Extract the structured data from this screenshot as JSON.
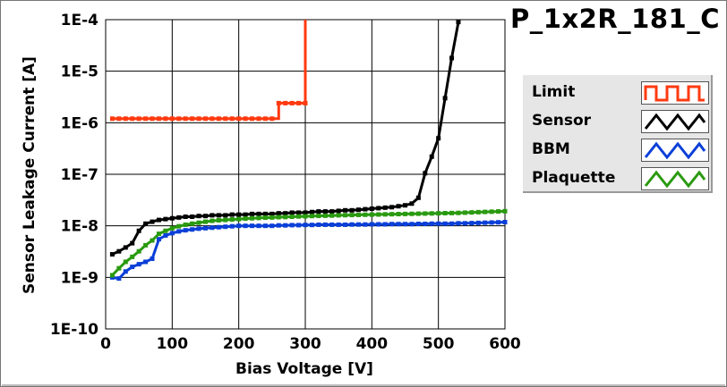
{
  "title": "P_1x2R_181_C",
  "legend": [
    {
      "label": "Limit",
      "color": "#ff3a10",
      "icon": "square-wave-icon"
    },
    {
      "label": "Sensor",
      "color": "#000000",
      "icon": "triangle-wave-icon"
    },
    {
      "label": "BBM",
      "color": "#0a3fd8",
      "icon": "triangle-wave-icon"
    },
    {
      "label": "Plaquette",
      "color": "#2a9a10",
      "icon": "triangle-wave-icon"
    }
  ],
  "chart_data": {
    "type": "line",
    "title": "P_1x2R_181_C",
    "xlabel": "Bias Voltage [V]",
    "ylabel": "Sensor Leakage Current [A]",
    "xlim": [
      0,
      600
    ],
    "ylim": [
      1e-10,
      0.0001
    ],
    "yscale": "log",
    "xticks": [
      0,
      100,
      200,
      300,
      400,
      500,
      600
    ],
    "xtick_labels": [
      "0",
      "100",
      "200",
      "300",
      "400",
      "500",
      "600"
    ],
    "yticks": [
      1e-10,
      1e-09,
      1e-08,
      1e-07,
      1e-06,
      1e-05,
      0.0001
    ],
    "ytick_labels": [
      "1E-10",
      "1E-9",
      "1E-8",
      "1E-7",
      "1E-6",
      "1E-5",
      "1E-4"
    ],
    "grid": true,
    "legend_position": "right",
    "series": [
      {
        "name": "Limit",
        "color": "#ff3a10",
        "step": true,
        "x": [
          10,
          20,
          30,
          40,
          50,
          60,
          70,
          80,
          90,
          100,
          110,
          120,
          130,
          140,
          150,
          160,
          170,
          180,
          190,
          200,
          210,
          220,
          230,
          240,
          250,
          260,
          270,
          280,
          290,
          300
        ],
        "y": [
          1.2e-06,
          1.2e-06,
          1.2e-06,
          1.2e-06,
          1.2e-06,
          1.2e-06,
          1.2e-06,
          1.2e-06,
          1.2e-06,
          1.2e-06,
          1.2e-06,
          1.2e-06,
          1.2e-06,
          1.2e-06,
          1.2e-06,
          1.2e-06,
          1.2e-06,
          1.2e-06,
          1.2e-06,
          1.2e-06,
          1.2e-06,
          1.2e-06,
          1.2e-06,
          1.2e-06,
          1.2e-06,
          2.4e-06,
          2.4e-06,
          2.4e-06,
          2.4e-06,
          2.4e-06
        ],
        "final_step": [
          300,
          0.0001
        ]
      },
      {
        "name": "Sensor",
        "color": "#000000",
        "x": [
          10,
          20,
          30,
          40,
          50,
          60,
          70,
          80,
          90,
          100,
          110,
          120,
          130,
          140,
          150,
          160,
          170,
          180,
          190,
          200,
          210,
          220,
          230,
          240,
          250,
          260,
          270,
          280,
          290,
          300,
          310,
          320,
          330,
          340,
          350,
          360,
          370,
          380,
          390,
          400,
          410,
          420,
          430,
          440,
          450,
          460,
          470,
          480,
          490,
          500,
          510,
          520,
          530
        ],
        "y": [
          2.8e-09,
          3.2e-09,
          3.8e-09,
          4.6e-09,
          8e-09,
          1.1e-08,
          1.2e-08,
          1.3e-08,
          1.35e-08,
          1.4e-08,
          1.45e-08,
          1.5e-08,
          1.5e-08,
          1.55e-08,
          1.55e-08,
          1.6e-08,
          1.6e-08,
          1.6e-08,
          1.65e-08,
          1.65e-08,
          1.65e-08,
          1.7e-08,
          1.7e-08,
          1.7e-08,
          1.7e-08,
          1.75e-08,
          1.75e-08,
          1.8e-08,
          1.8e-08,
          1.8e-08,
          1.85e-08,
          1.9e-08,
          1.9e-08,
          1.9e-08,
          1.95e-08,
          2e-08,
          2e-08,
          2.05e-08,
          2.1e-08,
          2.15e-08,
          2.2e-08,
          2.25e-08,
          2.3e-08,
          2.4e-08,
          2.5e-08,
          2.7e-08,
          3.5e-08,
          1.05e-07,
          2.2e-07,
          5e-07,
          3e-06,
          1.8e-05,
          9e-05
        ]
      },
      {
        "name": "BBM",
        "color": "#0a3fd8",
        "x": [
          10,
          20,
          30,
          40,
          50,
          60,
          70,
          80,
          90,
          100,
          110,
          120,
          130,
          140,
          150,
          160,
          170,
          180,
          190,
          200,
          210,
          220,
          230,
          240,
          250,
          260,
          270,
          280,
          290,
          300,
          310,
          320,
          330,
          340,
          350,
          360,
          370,
          380,
          390,
          400,
          410,
          420,
          430,
          440,
          450,
          460,
          470,
          480,
          490,
          500,
          510,
          520,
          530,
          540,
          550,
          560,
          570,
          580,
          590,
          600
        ],
        "y": [
          1e-09,
          9.5e-10,
          1.3e-09,
          1.6e-09,
          1.8e-09,
          2e-09,
          2.3e-09,
          5.5e-09,
          6.5e-09,
          7.2e-09,
          7.8e-09,
          8.2e-09,
          8.5e-09,
          8.8e-09,
          9e-09,
          9.2e-09,
          9.4e-09,
          9.6e-09,
          9.8e-09,
          1e-08,
          1e-08,
          1e-08,
          1e-08,
          1e-08,
          1e-08,
          1.02e-08,
          1.02e-08,
          1.03e-08,
          1.03e-08,
          1.04e-08,
          1.04e-08,
          1.05e-08,
          1.05e-08,
          1.05e-08,
          1.05e-08,
          1.05e-08,
          1.06e-08,
          1.06e-08,
          1.06e-08,
          1.07e-08,
          1.07e-08,
          1.07e-08,
          1.08e-08,
          1.08e-08,
          1.08e-08,
          1.08e-08,
          1.09e-08,
          1.09e-08,
          1.1e-08,
          1.1e-08,
          1.1e-08,
          1.1e-08,
          1.12e-08,
          1.12e-08,
          1.13e-08,
          1.14e-08,
          1.15e-08,
          1.16e-08,
          1.17e-08,
          1.18e-08
        ]
      },
      {
        "name": "Plaquette",
        "color": "#2a9a10",
        "x": [
          10,
          20,
          30,
          40,
          50,
          60,
          70,
          80,
          90,
          100,
          110,
          120,
          130,
          140,
          150,
          160,
          170,
          180,
          190,
          200,
          210,
          220,
          230,
          240,
          250,
          260,
          270,
          280,
          290,
          300,
          310,
          320,
          330,
          340,
          350,
          360,
          370,
          380,
          390,
          400,
          410,
          420,
          430,
          440,
          450,
          460,
          470,
          480,
          490,
          500,
          510,
          520,
          530,
          540,
          550,
          560,
          570,
          580,
          590,
          600
        ],
        "y": [
          1.1e-09,
          1.5e-09,
          2e-09,
          2.5e-09,
          3.2e-09,
          4.2e-09,
          5.2e-09,
          7e-09,
          8e-09,
          9e-09,
          9.8e-09,
          1.05e-08,
          1.1e-08,
          1.15e-08,
          1.2e-08,
          1.25e-08,
          1.28e-08,
          1.3e-08,
          1.33e-08,
          1.35e-08,
          1.38e-08,
          1.4e-08,
          1.42e-08,
          1.44e-08,
          1.45e-08,
          1.47e-08,
          1.48e-08,
          1.5e-08,
          1.52e-08,
          1.53e-08,
          1.55e-08,
          1.56e-08,
          1.57e-08,
          1.58e-08,
          1.6e-08,
          1.61e-08,
          1.62e-08,
          1.63e-08,
          1.64e-08,
          1.65e-08,
          1.66e-08,
          1.67e-08,
          1.68e-08,
          1.69e-08,
          1.7e-08,
          1.71e-08,
          1.72e-08,
          1.73e-08,
          1.74e-08,
          1.75e-08,
          1.76e-08,
          1.77e-08,
          1.78e-08,
          1.8e-08,
          1.82e-08,
          1.84e-08,
          1.86e-08,
          1.88e-08,
          1.9e-08,
          1.92e-08
        ]
      }
    ]
  }
}
